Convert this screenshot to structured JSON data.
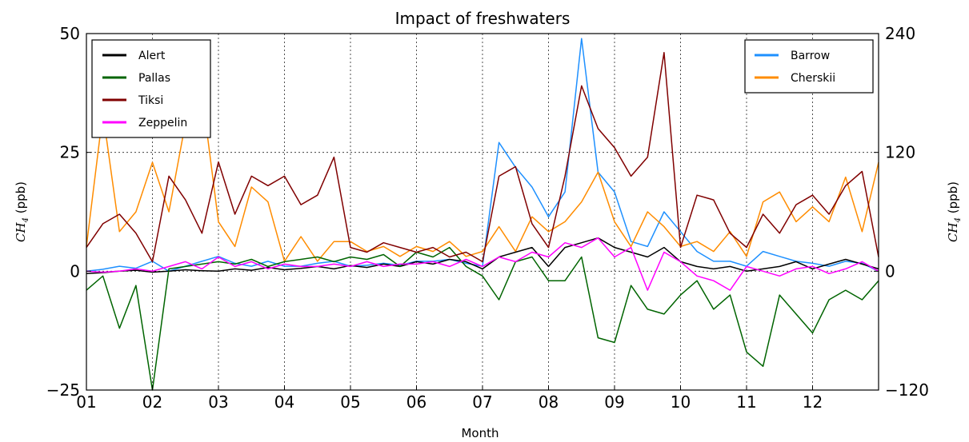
{
  "chart_data": {
    "type": "line",
    "title": "Impact of freshwaters",
    "xlabel": "Month",
    "ylabel_left": "CH4 (ppb)",
    "ylabel_right": "CH4 (ppb)",
    "x_tick_labels": [
      "01",
      "02",
      "03",
      "04",
      "05",
      "06",
      "07",
      "08",
      "09",
      "10",
      "11",
      "12"
    ],
    "x_range": [
      1,
      13
    ],
    "ylim_left": [
      -25,
      50
    ],
    "yticks_left": [
      -25,
      0,
      25,
      50
    ],
    "ylim_right": [
      -120,
      240
    ],
    "yticks_right": [
      -120,
      0,
      120,
      240
    ],
    "grid": true,
    "legend_left": {
      "placement": "top-left",
      "entries": [
        "Alert",
        "Pallas",
        "Tiksi",
        "Zeppelin"
      ]
    },
    "legend_right": {
      "placement": "top-right",
      "entries": [
        "Barrow",
        "Cherskii"
      ]
    },
    "x": [
      1.0,
      1.25,
      1.5,
      1.75,
      2.0,
      2.25,
      2.5,
      2.75,
      3.0,
      3.25,
      3.5,
      3.75,
      4.0,
      4.25,
      4.5,
      4.75,
      5.0,
      5.25,
      5.5,
      5.75,
      6.0,
      6.25,
      6.5,
      6.75,
      7.0,
      7.25,
      7.5,
      7.75,
      8.0,
      8.25,
      8.5,
      8.75,
      9.0,
      9.25,
      9.5,
      9.75,
      10.0,
      10.25,
      10.5,
      10.75,
      11.0,
      11.25,
      11.5,
      11.75,
      12.0,
      12.25,
      12.5,
      12.75,
      13.0
    ],
    "series": [
      {
        "name": "Alert",
        "axis": "left",
        "color": "#000000",
        "values": [
          -0.5,
          -0.3,
          0.0,
          0.2,
          -0.2,
          0.0,
          0.3,
          0.1,
          0.0,
          0.5,
          0.2,
          0.8,
          0.3,
          0.6,
          1.0,
          0.5,
          1.2,
          0.8,
          1.5,
          1.0,
          2.0,
          1.5,
          2.5,
          2.0,
          0.5,
          3.0,
          4.0,
          5.0,
          1.0,
          5.0,
          6.0,
          7.0,
          5.0,
          4.0,
          3.0,
          5.0,
          2.0,
          1.0,
          0.5,
          1.0,
          0.0,
          0.5,
          1.0,
          2.0,
          0.5,
          1.5,
          2.5,
          1.5,
          0.5
        ]
      },
      {
        "name": "Pallas",
        "axis": "left",
        "color": "#006400",
        "values": [
          -4.0,
          -1.0,
          -12.0,
          -3.0,
          -25.0,
          0.5,
          1.0,
          1.5,
          2.0,
          1.5,
          2.5,
          1.0,
          2.0,
          2.5,
          3.0,
          2.0,
          3.0,
          2.5,
          3.5,
          1.0,
          4.0,
          3.0,
          5.0,
          1.0,
          -1.0,
          -6.0,
          2.0,
          3.0,
          -2.0,
          -2.0,
          3.0,
          -14.0,
          -15.0,
          -3.0,
          -8.0,
          -9.0,
          -5.0,
          -2.0,
          -8.0,
          -5.0,
          -17.0,
          -20.0,
          -5.0,
          -9.0,
          -13.0,
          -6.0,
          -4.0,
          -6.0,
          -2.0
        ]
      },
      {
        "name": "Tiksi",
        "axis": "left",
        "color": "#800000",
        "values": [
          5.0,
          10.0,
          12.0,
          8.0,
          2.0,
          20.0,
          15.0,
          8.0,
          23.0,
          12.0,
          20.0,
          18.0,
          20.0,
          14.0,
          16.0,
          24.0,
          5.0,
          4.0,
          6.0,
          5.0,
          4.0,
          5.0,
          3.0,
          4.0,
          2.0,
          20.0,
          22.0,
          10.0,
          5.0,
          20.0,
          39.0,
          30.0,
          26.0,
          20.0,
          24.0,
          46.0,
          5.0,
          16.0,
          15.0,
          8.0,
          5.0,
          12.0,
          8.0,
          14.0,
          16.0,
          12.0,
          18.0,
          21.0,
          3.0
        ]
      },
      {
        "name": "Zeppelin",
        "axis": "left",
        "color": "#ff00ff",
        "values": [
          0.0,
          -0.2,
          0.0,
          0.5,
          0.0,
          1.0,
          2.0,
          0.5,
          3.0,
          1.0,
          2.0,
          0.5,
          1.5,
          1.0,
          1.0,
          1.5,
          1.0,
          2.0,
          1.0,
          1.5,
          1.5,
          2.0,
          1.0,
          2.5,
          1.0,
          3.0,
          2.0,
          4.0,
          3.0,
          6.0,
          5.0,
          7.0,
          3.0,
          5.0,
          -4.0,
          4.0,
          2.0,
          -1.0,
          -2.0,
          -4.0,
          1.0,
          0.0,
          -1.0,
          0.5,
          1.0,
          -0.5,
          0.5,
          2.0,
          0.0
        ]
      },
      {
        "name": "Barrow",
        "axis": "right",
        "color": "#1e90ff",
        "values": [
          0,
          2,
          5,
          3,
          10,
          0,
          5,
          10,
          15,
          8,
          5,
          10,
          5,
          5,
          8,
          10,
          5,
          6,
          8,
          6,
          10,
          10,
          12,
          8,
          5,
          130,
          105,
          85,
          55,
          80,
          235,
          100,
          80,
          30,
          25,
          60,
          40,
          20,
          10,
          10,
          5,
          20,
          15,
          10,
          8,
          5,
          10,
          8,
          0
        ]
      },
      {
        "name": "Cherskii",
        "axis": "right",
        "color": "#ff8c00",
        "values": [
          25,
          160,
          40,
          60,
          110,
          60,
          150,
          180,
          50,
          25,
          85,
          70,
          10,
          35,
          10,
          30,
          30,
          20,
          25,
          15,
          25,
          20,
          30,
          15,
          20,
          45,
          20,
          55,
          40,
          50,
          70,
          100,
          50,
          25,
          60,
          45,
          25,
          30,
          20,
          40,
          15,
          70,
          80,
          50,
          65,
          50,
          95,
          40,
          110
        ]
      }
    ]
  }
}
